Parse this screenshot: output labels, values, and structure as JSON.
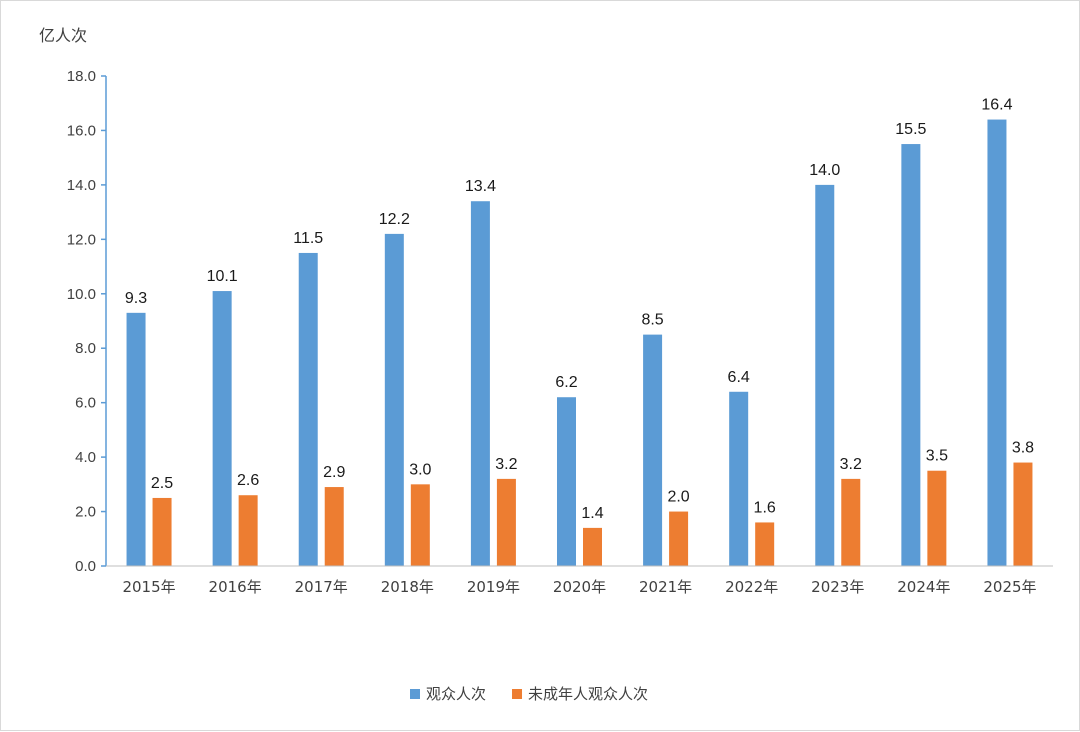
{
  "chart_data": {
    "type": "bar",
    "ylabel": "亿人次",
    "ylim": [
      0,
      18
    ],
    "yticks": [
      "0.0",
      "2.0",
      "4.0",
      "6.0",
      "8.0",
      "10.0",
      "12.0",
      "14.0",
      "16.0",
      "18.0"
    ],
    "categories": [
      "2015年",
      "2016年",
      "2017年",
      "2018年",
      "2019年",
      "2020年",
      "2021年",
      "2022年",
      "2023年",
      "2024年",
      "2025年"
    ],
    "series": [
      {
        "name": "观众人次",
        "color": "#5b9bd5",
        "values": [
          9.3,
          10.1,
          11.5,
          12.2,
          13.4,
          6.2,
          8.5,
          6.4,
          14.0,
          15.5,
          16.4
        ]
      },
      {
        "name": "未成年人观众人次",
        "color": "#ed7d31",
        "values": [
          2.5,
          2.6,
          2.9,
          3.0,
          3.2,
          1.4,
          2.0,
          1.6,
          3.2,
          3.5,
          3.8
        ]
      }
    ],
    "grid": false,
    "legend": "bottom"
  }
}
